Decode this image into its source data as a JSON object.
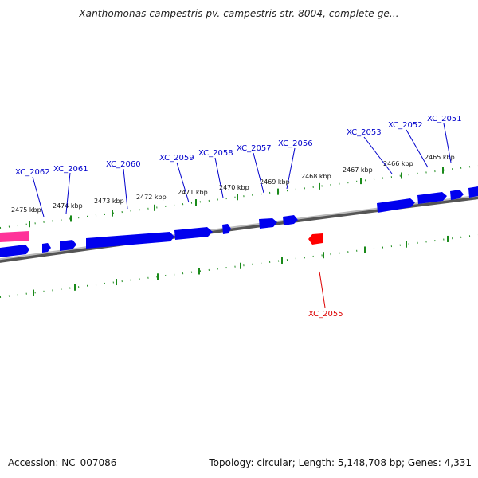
{
  "title": "Xanthomonas campestris pv. campestris str. 8004, complete ge...",
  "footer": {
    "accession": "Accession: NC_007086",
    "summary": "Topology: circular; Length: 5,148,708 bp; Genes: 4,331"
  },
  "colors": {
    "forward_gene": "#0000ee",
    "reverse_gene": "#ff0000",
    "highlight_gene": "#ff3399",
    "tick": "#1a8a1a",
    "backbone": "#888888",
    "forward_label": "#0000cc",
    "reverse_label": "#dd0000"
  },
  "scale": {
    "ticks_kbp": [
      "2475 kbp",
      "2474 kbp",
      "2473 kbp",
      "2472 kbp",
      "2471 kbp",
      "2470 kbp",
      "2469 kbp",
      "2468 kbp",
      "2467 kbp",
      "2466 kbp",
      "2465 kbp"
    ]
  },
  "genes": {
    "forward": [
      "XC_2062",
      "XC_2061",
      "XC_2060",
      "XC_2059",
      "XC_2058",
      "XC_2057",
      "XC_2056",
      "XC_2053",
      "XC_2052",
      "XC_2051"
    ],
    "reverse": [
      "XC_2055"
    ]
  }
}
